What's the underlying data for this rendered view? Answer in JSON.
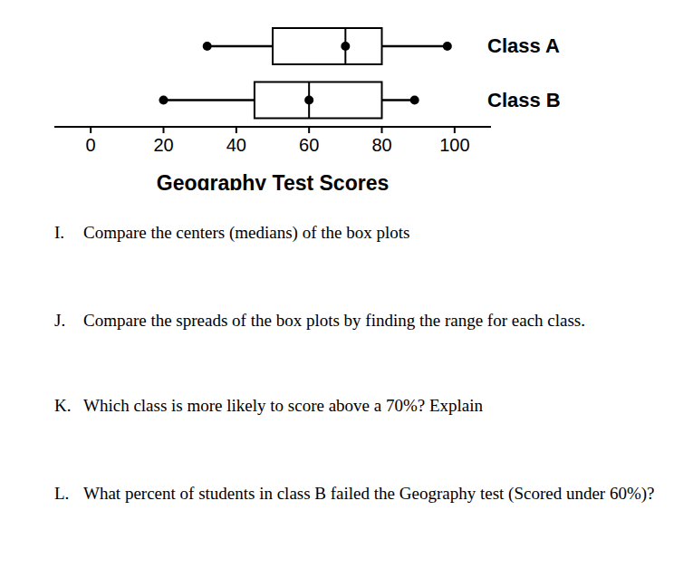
{
  "chart_data": {
    "type": "box",
    "orientation": "horizontal",
    "xlabel": "Geography Test Scores",
    "categories": [
      "Class A",
      "Class B"
    ],
    "boxes": [
      {
        "category": "Class A",
        "min": 32,
        "q1": 50,
        "median": 70,
        "q3": 80,
        "max": 98
      },
      {
        "category": "Class B",
        "min": 20,
        "q1": 45,
        "median": 60,
        "q3": 80,
        "max": 89
      }
    ],
    "xlim": [
      -10,
      110
    ],
    "xticks": [
      0,
      20,
      40,
      60,
      80,
      100
    ],
    "color": "#000000"
  },
  "questions": [
    {
      "label": "I.",
      "text": "Compare the centers (medians) of the box plots"
    },
    {
      "label": "J.",
      "text": "Compare the spreads of the box plots by finding the range for each class."
    },
    {
      "label": "K.",
      "text": "Which class is more likely to score above a 70%? Explain"
    },
    {
      "label": "L.",
      "text": "What percent of students in class B failed the Geography test (Scored under 60%)?"
    }
  ]
}
